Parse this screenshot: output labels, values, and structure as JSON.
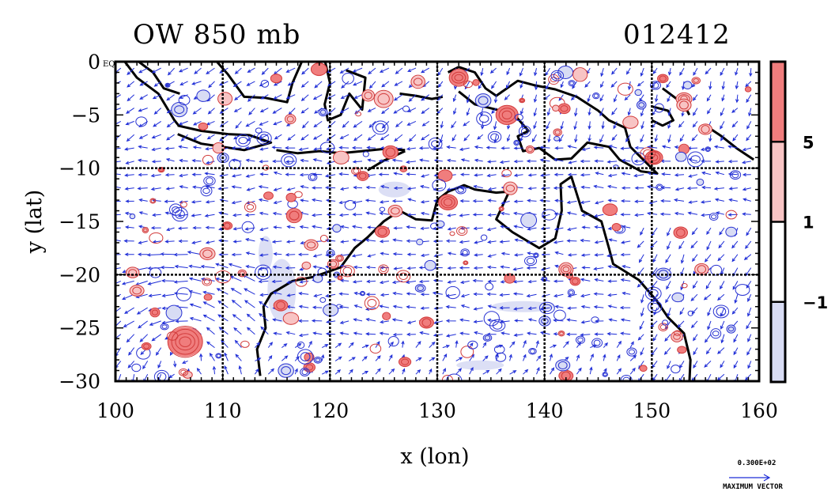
{
  "title_left": "OW 850 mb",
  "title_right": "012412",
  "chart_data": {
    "type": "contour-vector map",
    "xlabel": "x (lon)",
    "ylabel": "y (lat)",
    "xlim": [
      100,
      160
    ],
    "ylim": [
      -30,
      0
    ],
    "xticks": [
      100,
      110,
      120,
      130,
      140,
      150,
      160
    ],
    "yticks": [
      0,
      -5,
      -10,
      -15,
      -20,
      -25,
      -30
    ],
    "ytick_labels": [
      "0 EQ",
      "−5",
      "−10",
      "−15",
      "−20",
      "−25",
      "−30"
    ],
    "grid": true,
    "grid_lines_x": [
      110,
      120,
      130,
      140,
      150
    ],
    "grid_lines_y": [
      -10,
      -20
    ],
    "colorbar": {
      "levels": [
        -1,
        1,
        5
      ],
      "labels": [
        "5",
        "1",
        "−1"
      ],
      "colors": [
        "#f07d7d",
        "#f8c4c4",
        "#ffffff",
        "#d8dcf4"
      ]
    },
    "contour_colors": {
      "positive": "#d23c3c",
      "negative": "#2832d2"
    },
    "vector_color": "#1e2dd7",
    "reference_vector": {
      "value": "0.300E+02",
      "label": "MAXIMUM VECTOR"
    }
  }
}
